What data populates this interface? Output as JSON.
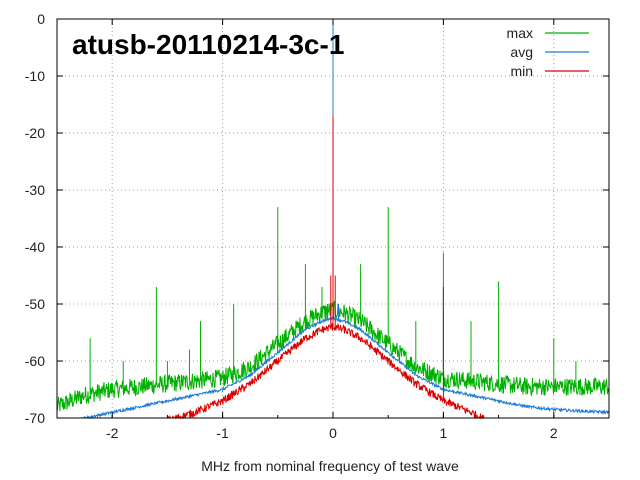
{
  "chart_data": {
    "type": "line",
    "title": "atusb-20110214-3c-1",
    "xlabel": "MHz from nominal frequency of test wave",
    "ylabel": "",
    "xlim": [
      -2.5,
      2.5
    ],
    "ylim": [
      -70,
      0
    ],
    "xticks": [
      -2,
      -1,
      0,
      1,
      2
    ],
    "xtick_labels": [
      "-2",
      "-1",
      "0",
      "1",
      "2"
    ],
    "yticks": [
      0,
      -10,
      -20,
      -30,
      -40,
      -50,
      -60,
      -70
    ],
    "ytick_labels": [
      "0",
      "-10",
      "-20",
      "-30",
      "-40",
      "-50",
      "-60",
      "-70"
    ],
    "grid": true,
    "legend_position": "top-right",
    "series": [
      {
        "name": "max",
        "color": "#00b000",
        "x": [
          -2.5,
          -2.25,
          -2.0,
          -1.75,
          -1.5,
          -1.25,
          -1.0,
          -0.75,
          -0.5,
          -0.25,
          -0.1,
          0.0,
          0.1,
          0.25,
          0.5,
          0.75,
          1.0,
          1.25,
          1.5,
          1.75,
          2.0,
          2.25,
          2.5
        ],
        "y": [
          -68,
          -66,
          -65,
          -64.5,
          -64,
          -63.5,
          -63,
          -61,
          -57,
          -53,
          -51.5,
          -51,
          -51.5,
          -53,
          -57,
          -61,
          -63,
          -63.5,
          -64,
          -64.5,
          -64.5,
          -64.5,
          -64.5
        ],
        "spikes": [
          {
            "x": -2.2,
            "y": -56
          },
          {
            "x": -1.9,
            "y": -60
          },
          {
            "x": -1.6,
            "y": -47
          },
          {
            "x": -1.5,
            "y": -60
          },
          {
            "x": -1.3,
            "y": -58
          },
          {
            "x": -1.2,
            "y": -53
          },
          {
            "x": -0.9,
            "y": -50
          },
          {
            "x": -0.75,
            "y": -61
          },
          {
            "x": -0.5,
            "y": -33
          },
          {
            "x": -0.25,
            "y": -43
          },
          {
            "x": -0.1,
            "y": -47
          },
          {
            "x": 0.0,
            "y": 0
          },
          {
            "x": 0.25,
            "y": -43
          },
          {
            "x": 0.5,
            "y": -33
          },
          {
            "x": 0.75,
            "y": -53
          },
          {
            "x": 1.0,
            "y": -41
          },
          {
            "x": 1.25,
            "y": -53
          },
          {
            "x": 1.5,
            "y": -46
          },
          {
            "x": 2.0,
            "y": -56
          },
          {
            "x": 2.2,
            "y": -60
          }
        ]
      },
      {
        "name": "avg",
        "color": "#1c7cd6",
        "x": [
          -2.5,
          -2.25,
          -2.0,
          -1.75,
          -1.5,
          -1.25,
          -1.0,
          -0.75,
          -0.5,
          -0.25,
          -0.1,
          0.0,
          0.1,
          0.25,
          0.5,
          0.75,
          1.0,
          1.25,
          1.5,
          1.75,
          2.0,
          2.25,
          2.5
        ],
        "y": [
          -71,
          -70,
          -69,
          -68,
          -67,
          -66,
          -65,
          -62.5,
          -58.5,
          -54.5,
          -53,
          -52.5,
          -53,
          -54.5,
          -58.5,
          -62.5,
          -65,
          -66,
          -67,
          -68,
          -68.5,
          -68.8,
          -69
        ],
        "spikes": [
          {
            "x": -0.05,
            "y": -50
          },
          {
            "x": 0.0,
            "y": 0
          },
          {
            "x": 0.05,
            "y": -50
          },
          {
            "x": 1.0,
            "y": -48
          }
        ]
      },
      {
        "name": "min",
        "color": "#dd0000",
        "x": [
          -1.5,
          -1.25,
          -1.0,
          -0.75,
          -0.5,
          -0.25,
          -0.1,
          0.0,
          0.1,
          0.25,
          0.5,
          0.75,
          1.0,
          1.25,
          1.4
        ],
        "y": [
          -70.5,
          -69,
          -67,
          -64,
          -60,
          -56,
          -54.5,
          -54,
          -54.5,
          -56,
          -60,
          -64,
          -67,
          -69,
          -70.5
        ],
        "spikes": [
          {
            "x": 0.0,
            "y": -17
          },
          {
            "x": -0.02,
            "y": -45
          },
          {
            "x": 0.02,
            "y": -45
          },
          {
            "x": 1.0,
            "y": -47
          }
        ]
      }
    ]
  }
}
